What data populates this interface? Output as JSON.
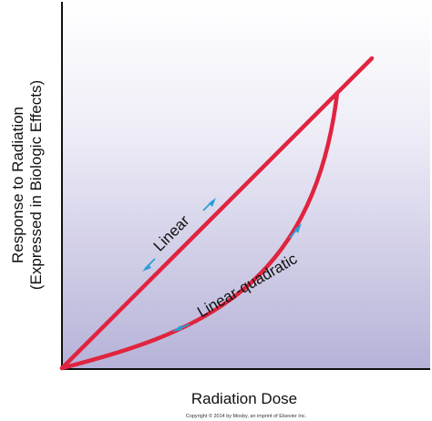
{
  "diagram": {
    "y_axis_title_line1": "Response to Radiation",
    "y_axis_title_line2": "(Expressed in Biologic Effects)",
    "x_axis_title": "Radiation Dose",
    "linear_label": "Linear",
    "linear_quadratic_label": "Linear-quadratic",
    "copyright": "Copyright © 2014 by Mosby, an imprint of Elsevier Inc."
  },
  "colors": {
    "curve": "#e0243f",
    "arrow": "#2a9fd8",
    "axis": "#111111",
    "background_top": "#ffffff",
    "background_bottom": "#b6b2d8"
  }
}
